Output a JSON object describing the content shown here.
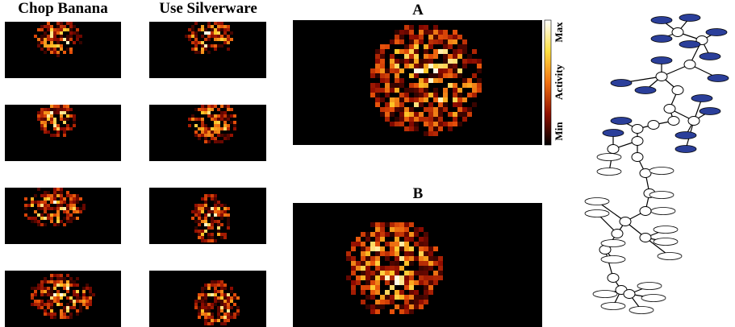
{
  "panels": {
    "chop_banana_title": "Chop Banana",
    "use_silverware_title": "Use Silverware"
  },
  "figure_a": {
    "label": "A"
  },
  "figure_b": {
    "label": "B"
  },
  "colorbar": {
    "max": "Max",
    "title": "Activity",
    "min": "Min"
  }
}
